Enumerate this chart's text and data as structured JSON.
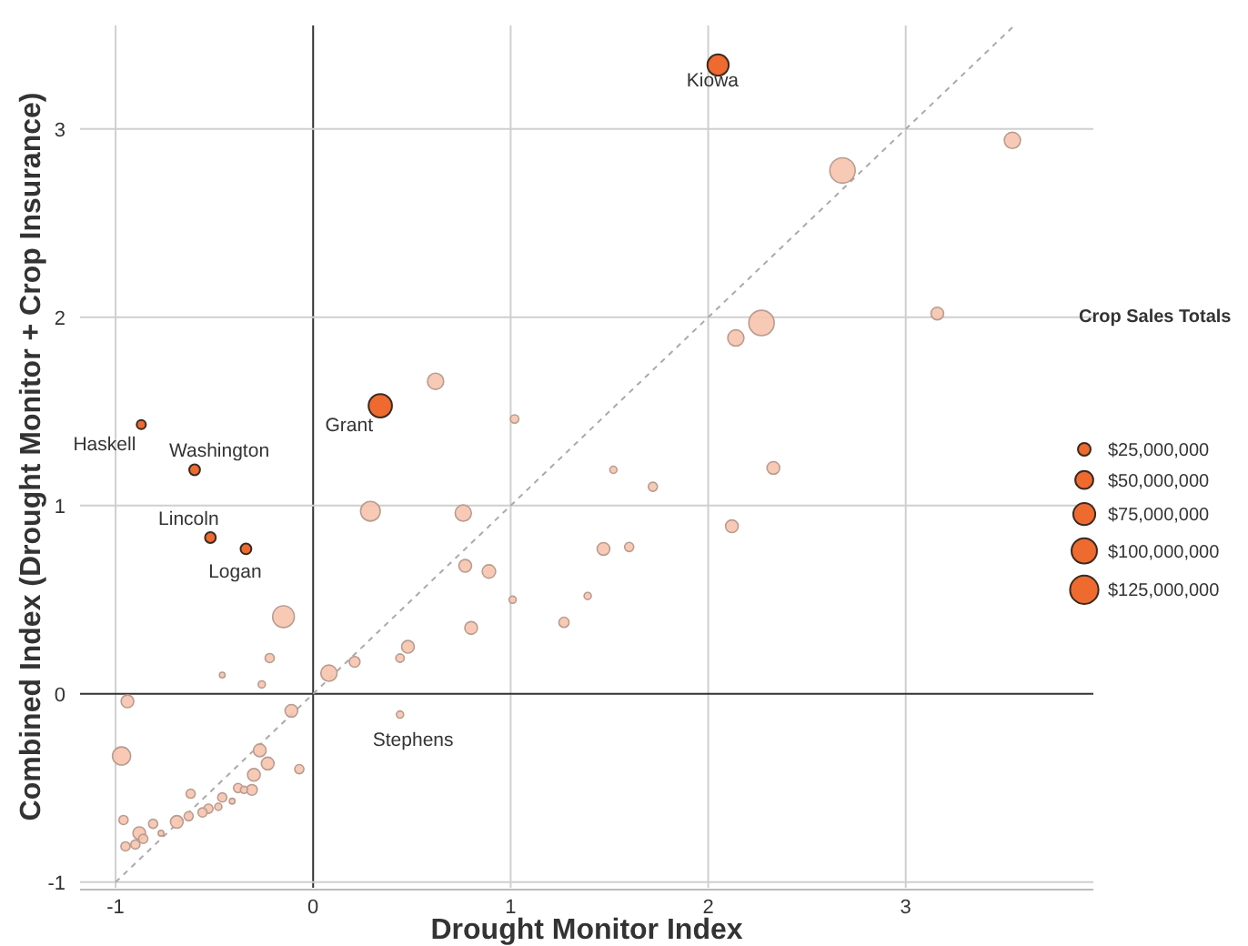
{
  "chart_data": {
    "type": "bubble",
    "xlabel": "Drought Monitor Index",
    "ylabel": "Combined Index (Drought Monitor + Crop Insurance)",
    "legend_title": "Crop Sales Totals",
    "grid": true,
    "xlim": [
      -1.18,
      3.95
    ],
    "ylim": [
      -1.03,
      3.55
    ],
    "xticks": [
      -1,
      0,
      1,
      2,
      3
    ],
    "yticks": [
      -1,
      0,
      1,
      2,
      3
    ],
    "size_legend": [
      {
        "value": 25000000,
        "label": "$25,000,000"
      },
      {
        "value": 50000000,
        "label": "$50,000,000"
      },
      {
        "value": 75000000,
        "label": "$75,000,000"
      },
      {
        "value": 100000000,
        "label": "$100,000,000"
      },
      {
        "value": 125000000,
        "label": "$125,000,000"
      }
    ],
    "series": [
      {
        "type": "line",
        "color": "#aaaaaa",
        "line_style": "dashed",
        "x": [
          -1,
          3.55
        ],
        "values": [
          -1,
          3.55
        ]
      },
      {
        "color": "#f7c4ae",
        "x": [
          3.54,
          2.68,
          2.27,
          2.14,
          3.16,
          1.52,
          2.33,
          0.62,
          1.02,
          1.72,
          2.12,
          1.47,
          1.6,
          0.29,
          0.76,
          0.77,
          0.89,
          1.01,
          0.8,
          1.27,
          1.39,
          -0.15,
          -0.22,
          -0.46,
          -0.26,
          0.08,
          0.21,
          0.44,
          0.48,
          0.44,
          -0.94,
          -0.97,
          -0.11,
          -0.07,
          -0.27,
          -0.23,
          -0.3,
          -0.31,
          -0.38,
          -0.62,
          -0.46,
          -0.48,
          -0.53,
          -0.56,
          -0.63,
          -0.69,
          -0.77,
          -0.81,
          -0.88,
          -0.96,
          -0.86,
          -0.9,
          -0.95,
          -0.41,
          -0.35
        ],
        "values": [
          2.94,
          2.78,
          1.97,
          1.89,
          2.02,
          1.19,
          1.2,
          1.66,
          1.46,
          1.1,
          0.89,
          0.77,
          0.78,
          0.97,
          0.96,
          0.68,
          0.65,
          0.5,
          0.35,
          0.38,
          0.52,
          0.41,
          0.19,
          0.1,
          0.05,
          0.11,
          0.17,
          0.19,
          0.25,
          -0.11,
          -0.04,
          -0.33,
          -0.09,
          -0.4,
          -0.3,
          -0.37,
          -0.43,
          -0.51,
          -0.5,
          -0.53,
          -0.55,
          -0.6,
          -0.61,
          -0.63,
          -0.65,
          -0.68,
          -0.74,
          -0.69,
          -0.74,
          -0.67,
          -0.77,
          -0.8,
          -0.81,
          -0.57,
          -0.51
        ],
        "sizes": [
          41000000,
          100000000,
          100000000,
          41000000,
          25000000,
          8000000,
          25000000,
          41000000,
          11000000,
          13000000,
          25000000,
          25000000,
          13000000,
          60000000,
          41000000,
          25000000,
          28000000,
          8000000,
          25000000,
          16000000,
          8000000,
          73000000,
          13000000,
          5000000,
          8000000,
          41000000,
          18000000,
          11000000,
          25000000,
          8000000,
          25000000,
          51000000,
          25000000,
          13000000,
          25000000,
          25000000,
          25000000,
          18000000,
          13000000,
          13000000,
          13000000,
          8000000,
          13000000,
          13000000,
          13000000,
          25000000,
          5000000,
          13000000,
          25000000,
          13000000,
          13000000,
          13000000,
          13000000,
          5000000,
          8000000
        ]
      },
      {
        "color": "#ef6a2e",
        "x": [
          2.05,
          0.34,
          -0.87,
          -0.6,
          -0.52,
          -0.34
        ],
        "values": [
          3.34,
          1.53,
          1.43,
          1.19,
          0.83,
          0.77
        ],
        "sizes": [
          70000000,
          85000000,
          13000000,
          18000000,
          18000000,
          18000000
        ]
      }
    ],
    "annotations": [
      {
        "text": "Kiowa",
        "x": 2.05,
        "y": 3.34
      },
      {
        "text": "Grant",
        "x": 0.34,
        "y": 1.53
      },
      {
        "text": "Haskell",
        "x": -0.87,
        "y": 1.43
      },
      {
        "text": "Washington",
        "x": -0.6,
        "y": 1.19
      },
      {
        "text": "Lincoln",
        "x": -0.52,
        "y": 0.83
      },
      {
        "text": "Logan",
        "x": -0.34,
        "y": 0.77
      },
      {
        "text": "Stephens",
        "x": 0.44,
        "y": -0.11
      }
    ]
  }
}
